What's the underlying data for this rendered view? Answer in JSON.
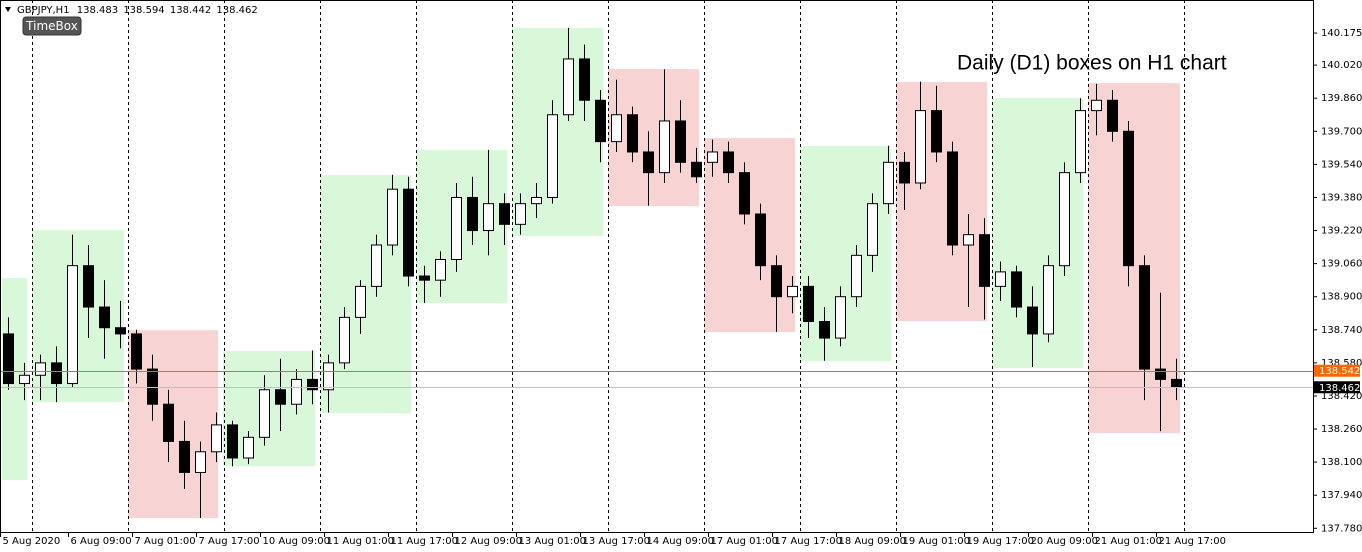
{
  "chart_data": {
    "type": "candlestick",
    "symbol": "GBPJPY,H1",
    "header_values": [
      138.483,
      138.594,
      138.442,
      138.462
    ],
    "button": "TimeBox",
    "annotation": "Daily (D1) boxes on H1 chart",
    "xlim": [
      -8,
      320.25
    ],
    "ylim": [
      137.762,
      140.335
    ],
    "yticks": [
      {
        "value": 140.175,
        "label": "140.175"
      },
      {
        "value": 140.02,
        "label": "140.020"
      },
      {
        "value": 139.86,
        "label": "139.860"
      },
      {
        "value": 139.7,
        "label": "139.700"
      },
      {
        "value": 139.54,
        "label": "139.540"
      },
      {
        "value": 139.38,
        "label": "139.380"
      },
      {
        "value": 139.22,
        "label": "139.220"
      },
      {
        "value": 139.06,
        "label": "139.060"
      },
      {
        "value": 138.9,
        "label": "138.900"
      },
      {
        "value": 138.74,
        "label": "138.740"
      },
      {
        "value": 138.58,
        "label": "138.580"
      },
      {
        "value": 138.42,
        "label": "138.420"
      },
      {
        "value": 138.26,
        "label": "138.260"
      },
      {
        "value": 138.1,
        "label": "138.100"
      },
      {
        "value": 137.94,
        "label": "137.940"
      },
      {
        "value": 137.78,
        "label": "137.780"
      }
    ],
    "xticks": [
      {
        "value": -8,
        "label": "5 Aug 2020"
      },
      {
        "value": 9,
        "label": "6 Aug 09:00"
      },
      {
        "value": 25,
        "label": "7 Aug 01:00"
      },
      {
        "value": 41,
        "label": "7 Aug 17:00"
      },
      {
        "value": 57,
        "label": "10 Aug 09:00"
      },
      {
        "value": 73,
        "label": "11 Aug 01:00"
      },
      {
        "value": 89,
        "label": "11 Aug 17:00"
      },
      {
        "value": 105,
        "label": "12 Aug 09:00"
      },
      {
        "value": 121,
        "label": "13 Aug 01:00"
      },
      {
        "value": 137,
        "label": "13 Aug 17:00"
      },
      {
        "value": 153,
        "label": "14 Aug 09:00"
      },
      {
        "value": 169,
        "label": "17 Aug 01:00"
      },
      {
        "value": 185,
        "label": "17 Aug 17:00"
      },
      {
        "value": 201,
        "label": "18 Aug 09:00"
      },
      {
        "value": 217,
        "label": "19 Aug 01:00"
      },
      {
        "value": 233,
        "label": "19 Aug 17:00"
      },
      {
        "value": 249,
        "label": "20 Aug 09:00"
      },
      {
        "value": 265,
        "label": "21 Aug 01:00"
      },
      {
        "value": 281,
        "label": "21 Aug 17:00"
      }
    ],
    "separators": [
      0,
      24,
      48,
      72,
      96,
      120,
      144,
      168,
      192,
      216,
      240,
      264,
      288
    ],
    "boxes": [
      {
        "start": -7.5,
        "end": -1.25,
        "high": 138.99,
        "low": 138.013,
        "color": "#d9f7d9"
      },
      {
        "start": 0,
        "end": 23,
        "high": 139.222,
        "low": 138.39,
        "color": "#d9f7d9"
      },
      {
        "start": 24,
        "end": 46.5,
        "high": 138.738,
        "low": 137.829,
        "color": "#f8d3d3"
      },
      {
        "start": 47.75,
        "end": 70.75,
        "high": 138.637,
        "low": 138.08,
        "color": "#d9f7d9"
      },
      {
        "start": 72,
        "end": 94.75,
        "high": 139.488,
        "low": 138.337,
        "color": "#d9f7d9"
      },
      {
        "start": 96,
        "end": 118.75,
        "high": 139.609,
        "low": 138.869,
        "color": "#d9f7d9"
      },
      {
        "start": 120,
        "end": 142.75,
        "high": 140.2,
        "low": 139.193,
        "color": "#d9f7d9"
      },
      {
        "start": 144,
        "end": 166.75,
        "high": 140.001,
        "low": 139.338,
        "color": "#f8d3d3"
      },
      {
        "start": 168,
        "end": 190.75,
        "high": 139.667,
        "low": 138.729,
        "color": "#f8d3d3"
      },
      {
        "start": 192,
        "end": 214.75,
        "high": 139.629,
        "low": 138.588,
        "color": "#d9f7d9"
      },
      {
        "start": 216,
        "end": 238.75,
        "high": 139.938,
        "low": 138.782,
        "color": "#f8d3d3"
      },
      {
        "start": 240,
        "end": 262.75,
        "high": 139.861,
        "low": 138.555,
        "color": "#d9f7d9"
      },
      {
        "start": 264,
        "end": 287,
        "high": 139.933,
        "low": 138.24,
        "color": "#f8d3d3"
      }
    ],
    "candles": {
      "x": [
        -6,
        -2,
        2,
        6,
        10,
        14,
        18,
        22,
        26,
        30,
        34,
        38,
        42,
        46,
        50,
        54,
        58,
        62,
        66,
        70,
        74,
        78,
        82,
        86,
        90,
        94,
        98,
        102,
        106,
        110,
        114,
        118,
        122,
        126,
        130,
        134,
        138,
        142,
        146,
        150,
        154,
        158,
        162,
        166,
        170,
        174,
        178,
        182,
        186,
        190,
        194,
        198,
        202,
        206,
        210,
        214,
        218,
        222,
        226,
        230,
        234,
        238,
        242,
        246,
        250,
        254,
        258,
        262,
        266,
        270,
        274,
        278,
        282,
        286
      ],
      "open": [
        138.72,
        138.48,
        138.52,
        138.58,
        138.48,
        139.05,
        138.85,
        138.75,
        138.72,
        138.55,
        138.38,
        138.2,
        138.05,
        138.15,
        138.28,
        138.12,
        138.22,
        138.45,
        138.38,
        138.5,
        138.45,
        138.58,
        138.8,
        138.95,
        139.15,
        139.42,
        139.0,
        138.98,
        139.08,
        139.38,
        139.22,
        139.35,
        139.25,
        139.35,
        139.38,
        139.78,
        140.05,
        139.85,
        139.65,
        139.78,
        139.6,
        139.5,
        139.75,
        139.55,
        139.55,
        139.6,
        139.5,
        139.3,
        139.05,
        138.9,
        138.95,
        138.78,
        138.7,
        138.9,
        139.1,
        139.35,
        139.55,
        139.45,
        139.8,
        139.6,
        139.15,
        139.2,
        138.95,
        139.02,
        138.85,
        138.72,
        139.05,
        139.5,
        139.8,
        139.85,
        139.7,
        139.05,
        138.55,
        138.5
      ],
      "high": [
        138.8,
        138.58,
        138.62,
        138.66,
        139.2,
        139.15,
        138.98,
        138.88,
        138.74,
        138.62,
        138.45,
        138.3,
        138.2,
        138.34,
        138.3,
        138.25,
        138.52,
        138.6,
        138.55,
        138.64,
        138.62,
        138.85,
        138.98,
        139.2,
        139.49,
        139.48,
        139.05,
        139.12,
        139.45,
        139.48,
        139.61,
        139.4,
        139.4,
        139.45,
        139.85,
        140.2,
        140.12,
        139.9,
        139.95,
        139.82,
        139.7,
        140.0,
        139.85,
        139.62,
        139.66,
        139.65,
        139.55,
        139.35,
        139.1,
        139.0,
        139.0,
        138.85,
        138.95,
        139.15,
        139.4,
        139.63,
        139.6,
        139.94,
        139.92,
        139.65,
        139.3,
        139.28,
        139.07,
        139.05,
        138.95,
        139.1,
        139.55,
        139.86,
        139.93,
        139.9,
        139.75,
        139.1,
        138.92,
        138.6
      ],
      "low": [
        138.45,
        138.4,
        138.4,
        138.39,
        138.46,
        138.7,
        138.6,
        138.65,
        138.48,
        138.3,
        138.1,
        137.97,
        137.83,
        138.1,
        138.08,
        138.09,
        138.18,
        138.25,
        138.33,
        138.38,
        138.34,
        138.55,
        138.72,
        138.9,
        139.1,
        138.95,
        138.87,
        138.9,
        139.02,
        139.15,
        139.1,
        139.15,
        139.2,
        139.28,
        139.35,
        139.75,
        139.75,
        139.55,
        139.6,
        139.55,
        139.34,
        139.45,
        139.5,
        139.45,
        139.48,
        139.45,
        139.25,
        138.98,
        138.73,
        138.82,
        138.7,
        138.59,
        138.66,
        138.85,
        139.02,
        139.3,
        139.32,
        139.42,
        139.55,
        139.1,
        138.85,
        138.79,
        138.88,
        138.8,
        138.56,
        138.68,
        139.0,
        139.45,
        139.68,
        139.65,
        138.95,
        138.4,
        138.25,
        138.4
      ],
      "close": [
        138.48,
        138.52,
        138.58,
        138.48,
        139.05,
        138.85,
        138.75,
        138.72,
        138.55,
        138.38,
        138.2,
        138.05,
        138.15,
        138.28,
        138.12,
        138.22,
        138.45,
        138.38,
        138.5,
        138.45,
        138.58,
        138.8,
        138.95,
        139.15,
        139.42,
        139.0,
        138.98,
        139.08,
        139.38,
        139.22,
        139.35,
        139.25,
        139.35,
        139.38,
        139.78,
        140.05,
        139.85,
        139.65,
        139.78,
        139.6,
        139.5,
        139.75,
        139.55,
        139.48,
        139.6,
        139.5,
        139.3,
        139.05,
        138.9,
        138.95,
        138.78,
        138.7,
        138.9,
        139.1,
        139.35,
        139.55,
        139.45,
        139.8,
        139.6,
        139.15,
        139.2,
        138.95,
        139.02,
        138.85,
        138.72,
        139.05,
        139.5,
        139.8,
        139.85,
        139.7,
        139.05,
        138.55,
        138.5,
        138.462
      ]
    },
    "price_lines": [
      {
        "value": 138.542,
        "color": "#ff6600",
        "tag_color": "#ff6600"
      },
      {
        "value": 138.462,
        "color": "#c0c0c0",
        "tag_color": "#000000"
      }
    ]
  }
}
